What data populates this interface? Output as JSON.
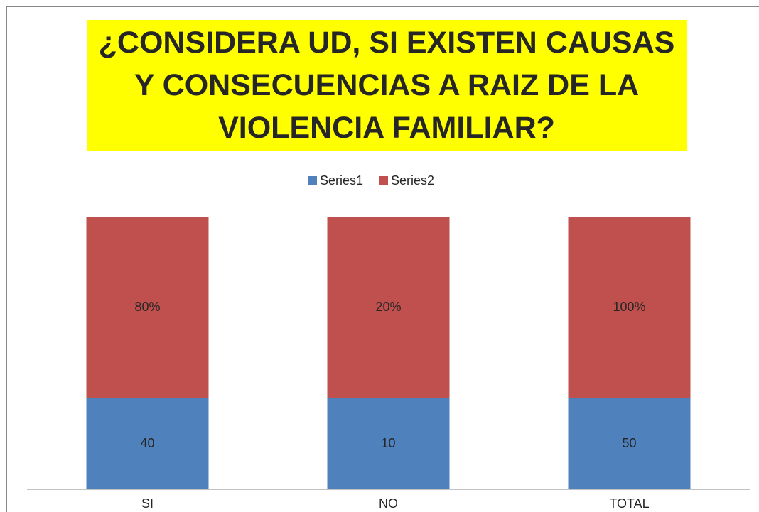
{
  "chart_data": {
    "type": "bar",
    "stacking": "percent",
    "title": "¿CONSIDERA UD, SI EXISTEN CAUSAS Y CONSECUENCIAS A RAIZ DE LA VIOLENCIA FAMILIAR?",
    "categories": [
      "SI",
      "NO",
      "TOTAL"
    ],
    "series": [
      {
        "name": "Series1",
        "color": "#4f81bd",
        "values": [
          40,
          10,
          50
        ]
      },
      {
        "name": "Series2",
        "color": "#c0504d",
        "values": [
          80,
          20,
          100
        ],
        "value_labels": [
          "80%",
          "20%",
          "100%"
        ]
      }
    ],
    "legend": "top"
  }
}
